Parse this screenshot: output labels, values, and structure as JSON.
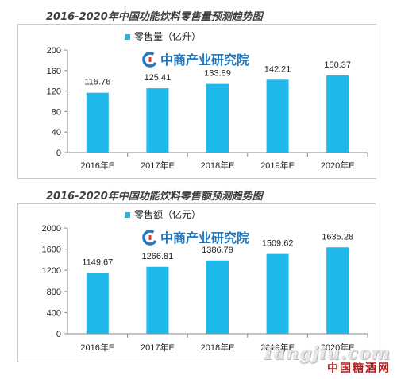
{
  "chart_data": [
    {
      "type": "bar",
      "title": "2016-2020年中国功能饮料零售量预测趋势图",
      "legend": "零售量（亿升）",
      "brand": "中商产业研究院",
      "categories": [
        "2016年E",
        "2017年E",
        "2018年E",
        "2019年E",
        "2020年E"
      ],
      "values": [
        116.76,
        125.41,
        133.89,
        142.21,
        150.37
      ],
      "value_labels": [
        "116.76",
        "125.41",
        "133.89",
        "142.21",
        "150.37"
      ],
      "ylim": [
        0,
        200
      ],
      "yticks": [
        "0",
        "40",
        "80",
        "120",
        "160",
        "200"
      ],
      "grid": false,
      "legend_position": "top-left",
      "bar_color": "#1fb8ea"
    },
    {
      "type": "bar",
      "title": "2016-2020年中国功能饮料零售额预测趋势图",
      "legend": "零售额（亿元）",
      "brand": "中商产业研究院",
      "categories": [
        "2016年E",
        "2017年E",
        "2018年E",
        "2019年E",
        "2020年E"
      ],
      "values": [
        1149.67,
        1266.81,
        1386.79,
        1509.62,
        1635.28
      ],
      "value_labels": [
        "1149.67",
        "1266.81",
        "1386.79",
        "1509.62",
        "1635.28"
      ],
      "ylim": [
        0,
        2000
      ],
      "yticks": [
        "0",
        "400",
        "800",
        "1200",
        "1600",
        "2000"
      ],
      "grid": false,
      "legend_position": "top-left",
      "bar_color": "#1fb8ea"
    }
  ],
  "watermark": {
    "site": "Tangjiu.com",
    "name": "中国糖酒网",
    "color": "#b71c1c"
  }
}
